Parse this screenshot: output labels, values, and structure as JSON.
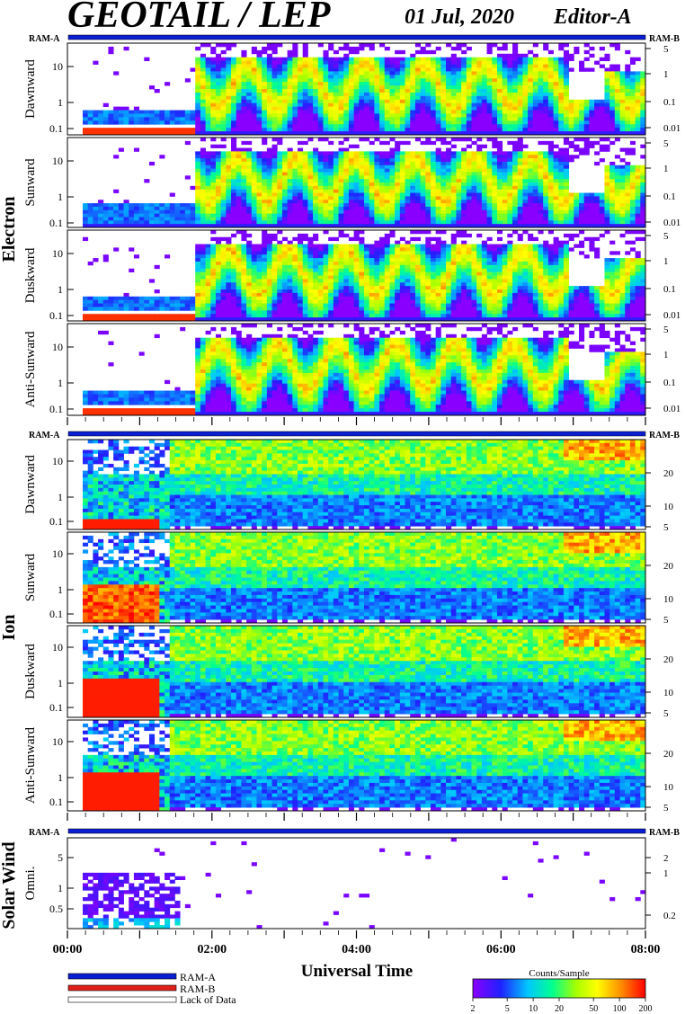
{
  "header": {
    "title": "GEOTAIL / LEP",
    "date": "01 Jul, 2020",
    "edition": "Editor-A"
  },
  "ram_labels": {
    "left": "RAM-A",
    "right": "RAM-B"
  },
  "groups": [
    {
      "label": "Electron",
      "left_ticks": [
        "10",
        "1",
        "0.1"
      ],
      "right_ticks": [
        "5",
        "1",
        "0.1",
        "0.01"
      ],
      "panels": [
        {
          "label": "Dawnward"
        },
        {
          "label": "Sunward"
        },
        {
          "label": "Duskward"
        },
        {
          "label": "Anti-Sunward"
        }
      ]
    },
    {
      "label": "Ion",
      "left_ticks": [
        "10",
        "1",
        "0.1"
      ],
      "right_ticks": [
        "20",
        "10",
        "5"
      ],
      "panels": [
        {
          "label": "Dawnward"
        },
        {
          "label": "Sunward"
        },
        {
          "label": "Duskward"
        },
        {
          "label": "Anti-Sunward"
        }
      ]
    },
    {
      "label": "Solar Wind",
      "left_ticks": [
        "5",
        "1",
        "0.5"
      ],
      "right_ticks": [
        "2",
        "1",
        "0.2"
      ],
      "panels": [
        {
          "label": "Omni."
        }
      ]
    }
  ],
  "x_axis": {
    "title": "Universal Time",
    "ticks": [
      "00:00",
      "02:00",
      "04:00",
      "06:00",
      "08:00"
    ]
  },
  "legend": {
    "items": [
      {
        "label": "RAM-A",
        "color": "#0a1ed2"
      },
      {
        "label": "RAM-B",
        "color": "#e0201a"
      },
      {
        "label": "Lack of Data",
        "color": "#ffffff"
      }
    ]
  },
  "colorbar": {
    "title": "Counts/Sample",
    "ticks": [
      "2",
      "5",
      "10",
      "20",
      "50",
      "100",
      "200"
    ],
    "colors": [
      "#8a00ff",
      "#2020ff",
      "#00c8ff",
      "#00ff90",
      "#a8ff00",
      "#ffff00",
      "#ff8c00",
      "#ff0000"
    ]
  },
  "chart_data": {
    "type": "heatmap",
    "x": [
      "00:00",
      "02:00",
      "04:00",
      "06:00",
      "08:00"
    ],
    "xlabel": "Universal Time",
    "series": [
      {
        "name": "Electron Dawnward"
      },
      {
        "name": "Electron Sunward"
      },
      {
        "name": "Electron Duskward"
      },
      {
        "name": "Electron Anti-Sunward"
      },
      {
        "name": "Ion Dawnward"
      },
      {
        "name": "Ion Sunward"
      },
      {
        "name": "Ion Duskward"
      },
      {
        "name": "Ion Anti-Sunward"
      },
      {
        "name": "Solar Wind Omni."
      }
    ]
  }
}
